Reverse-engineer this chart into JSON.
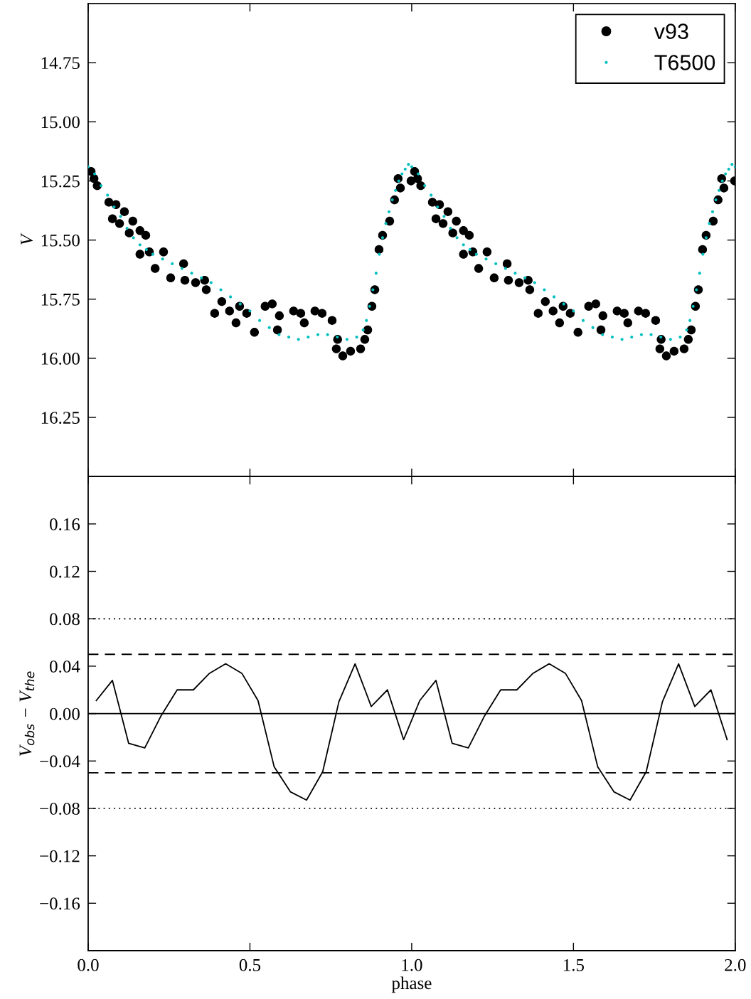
{
  "chart_data": [
    {
      "type": "scatter",
      "ylabel": "V",
      "xlim": [
        0.0,
        2.0
      ],
      "ylim": [
        16.5,
        14.5
      ],
      "xticks": [
        {
          "value": 0.0,
          "label": null
        },
        {
          "value": 0.5,
          "label": null
        },
        {
          "value": 1.0,
          "label": null
        },
        {
          "value": 1.5,
          "label": null
        },
        {
          "value": 2.0,
          "label": null
        }
      ],
      "yticks": [
        {
          "value": 14.75,
          "label": "14.75"
        },
        {
          "value": 15.0,
          "label": "15.00"
        },
        {
          "value": 15.25,
          "label": "15.25"
        },
        {
          "value": 15.5,
          "label": "15.50"
        },
        {
          "value": 15.75,
          "label": "15.75"
        },
        {
          "value": 16.0,
          "label": "16.00"
        },
        {
          "value": 16.25,
          "label": "16.25"
        }
      ],
      "tick_labels": "y",
      "legend": "top right",
      "marker": "circle",
      "grid": false,
      "series": [
        {
          "name": "v93",
          "color": "#000000",
          "x": [
            0.009,
            0.018,
            0.028,
            0.064,
            0.075,
            0.086,
            0.097,
            0.112,
            0.127,
            0.138,
            0.16,
            0.16,
            0.178,
            0.189,
            0.207,
            0.233,
            0.255,
            0.295,
            0.299,
            0.332,
            0.36,
            0.365,
            0.391,
            0.413,
            0.437,
            0.457,
            0.468,
            0.49,
            0.514,
            0.547,
            0.569,
            0.585,
            0.591,
            0.635,
            0.657,
            0.668,
            0.701,
            0.723,
            0.754,
            0.767,
            0.771,
            0.787,
            0.811,
            0.842,
            0.855,
            0.864,
            0.877,
            0.886,
            0.899,
            0.91,
            0.932,
            0.947,
            0.958,
            0.965,
            0.998,
            1.009,
            1.018,
            1.028,
            1.064,
            1.075,
            1.086,
            1.097,
            1.112,
            1.127,
            1.138,
            1.16,
            1.16,
            1.178,
            1.189,
            1.207,
            1.233,
            1.255,
            1.295,
            1.299,
            1.332,
            1.36,
            1.365,
            1.391,
            1.413,
            1.437,
            1.457,
            1.468,
            1.49,
            1.514,
            1.547,
            1.569,
            1.585,
            1.591,
            1.635,
            1.657,
            1.668,
            1.701,
            1.723,
            1.754,
            1.767,
            1.771,
            1.787,
            1.811,
            1.842,
            1.855,
            1.864,
            1.877,
            1.886,
            1.899,
            1.91,
            1.932,
            1.947,
            1.958,
            1.965,
            1.998
          ],
          "values": [
            15.21,
            15.24,
            15.27,
            15.34,
            15.41,
            15.35,
            15.43,
            15.38,
            15.47,
            15.42,
            15.46,
            15.56,
            15.48,
            15.55,
            15.62,
            15.55,
            15.66,
            15.6,
            15.67,
            15.68,
            15.67,
            15.71,
            15.81,
            15.76,
            15.8,
            15.85,
            15.78,
            15.81,
            15.89,
            15.78,
            15.77,
            15.88,
            15.82,
            15.8,
            15.81,
            15.85,
            15.8,
            15.81,
            15.84,
            15.96,
            15.92,
            15.99,
            15.97,
            15.96,
            15.92,
            15.88,
            15.78,
            15.71,
            15.54,
            15.48,
            15.42,
            15.33,
            15.24,
            15.28,
            15.25,
            15.21,
            15.24,
            15.27,
            15.34,
            15.41,
            15.35,
            15.43,
            15.38,
            15.47,
            15.42,
            15.46,
            15.56,
            15.48,
            15.55,
            15.62,
            15.55,
            15.66,
            15.6,
            15.67,
            15.68,
            15.67,
            15.71,
            15.81,
            15.76,
            15.8,
            15.85,
            15.78,
            15.81,
            15.89,
            15.78,
            15.77,
            15.88,
            15.82,
            15.8,
            15.81,
            15.85,
            15.8,
            15.81,
            15.84,
            15.96,
            15.92,
            15.99,
            15.97,
            15.96,
            15.92,
            15.88,
            15.78,
            15.71,
            15.54,
            15.48,
            15.42,
            15.33,
            15.24,
            15.28,
            15.25
          ]
        },
        {
          "name": "T6500",
          "color": "#00bfbf",
          "x": [
            0.0,
            0.02,
            0.04,
            0.06,
            0.08,
            0.1,
            0.12,
            0.14,
            0.16,
            0.18,
            0.2,
            0.23,
            0.26,
            0.29,
            0.32,
            0.35,
            0.38,
            0.41,
            0.44,
            0.47,
            0.5,
            0.53,
            0.56,
            0.59,
            0.62,
            0.65,
            0.68,
            0.71,
            0.74,
            0.77,
            0.8,
            0.83,
            0.85,
            0.86,
            0.87,
            0.88,
            0.89,
            0.9,
            0.91,
            0.92,
            0.93,
            0.94,
            0.95,
            0.96,
            0.97,
            0.98,
            0.99,
            1.0,
            1.02,
            1.04,
            1.06,
            1.08,
            1.1,
            1.12,
            1.14,
            1.16,
            1.18,
            1.2,
            1.23,
            1.26,
            1.29,
            1.32,
            1.35,
            1.38,
            1.41,
            1.44,
            1.47,
            1.5,
            1.53,
            1.56,
            1.59,
            1.62,
            1.65,
            1.68,
            1.71,
            1.74,
            1.77,
            1.8,
            1.83,
            1.85,
            1.86,
            1.87,
            1.88,
            1.89,
            1.9,
            1.91,
            1.92,
            1.93,
            1.94,
            1.95,
            1.96,
            1.97,
            1.98,
            1.99,
            2.0
          ],
          "values": [
            15.19,
            15.22,
            15.27,
            15.31,
            15.36,
            15.4,
            15.45,
            15.49,
            15.52,
            15.54,
            15.56,
            15.58,
            15.6,
            15.62,
            15.64,
            15.66,
            15.68,
            15.71,
            15.74,
            15.77,
            15.8,
            15.84,
            15.87,
            15.9,
            15.91,
            15.92,
            15.91,
            15.9,
            15.9,
            15.91,
            15.92,
            15.91,
            15.88,
            15.84,
            15.78,
            15.71,
            15.64,
            15.56,
            15.49,
            15.43,
            15.38,
            15.33,
            15.29,
            15.25,
            15.22,
            15.2,
            15.18,
            15.19,
            15.22,
            15.27,
            15.31,
            15.36,
            15.4,
            15.45,
            15.49,
            15.52,
            15.54,
            15.56,
            15.58,
            15.6,
            15.62,
            15.64,
            15.66,
            15.68,
            15.71,
            15.74,
            15.77,
            15.8,
            15.84,
            15.87,
            15.9,
            15.91,
            15.92,
            15.91,
            15.9,
            15.9,
            15.91,
            15.92,
            15.91,
            15.88,
            15.84,
            15.78,
            15.71,
            15.64,
            15.56,
            15.49,
            15.43,
            15.38,
            15.33,
            15.29,
            15.25,
            15.22,
            15.2,
            15.18,
            15.19
          ]
        }
      ]
    },
    {
      "type": "line",
      "xlabel": "phase",
      "ylabel": "V$_{obs}$ − V$_{the}$",
      "xlim": [
        0.0,
        2.0
      ],
      "ylim": [
        -0.2,
        0.2
      ],
      "xticks": [
        {
          "value": 0.0,
          "label": "0.0"
        },
        {
          "value": 0.5,
          "label": "0.5"
        },
        {
          "value": 1.0,
          "label": "1.0"
        },
        {
          "value": 1.5,
          "label": "1.5"
        },
        {
          "value": 2.0,
          "label": "2.0"
        }
      ],
      "yticks": [
        {
          "value": -0.16,
          "label": "−0.16"
        },
        {
          "value": -0.12,
          "label": "−0.12"
        },
        {
          "value": -0.08,
          "label": "−0.08"
        },
        {
          "value": -0.04,
          "label": "−0.04"
        },
        {
          "value": 0.0,
          "label": "0.00"
        },
        {
          "value": 0.04,
          "label": "0.04"
        },
        {
          "value": 0.08,
          "label": "0.08"
        },
        {
          "value": 0.12,
          "label": "0.12"
        },
        {
          "value": 0.16,
          "label": "0.16"
        }
      ],
      "grid": false,
      "line_style": "solid",
      "ref_lines": [
        {
          "axis": "y",
          "value": 0.0,
          "color": "#000000",
          "line_style": "solid"
        },
        {
          "axis": "y",
          "value": 0.05,
          "color": "#000000",
          "line_style": "dashed"
        },
        {
          "axis": "y",
          "value": -0.05,
          "color": "#000000",
          "line_style": "dashed"
        },
        {
          "axis": "y",
          "value": 0.08,
          "color": "#000000",
          "line_style": "dotted"
        },
        {
          "axis": "y",
          "value": -0.08,
          "color": "#000000",
          "line_style": "dotted"
        }
      ],
      "series": [
        {
          "color": "#000000",
          "x": [
            0.025,
            0.075,
            0.125,
            0.175,
            0.225,
            0.275,
            0.325,
            0.375,
            0.425,
            0.475,
            0.525,
            0.575,
            0.625,
            0.675,
            0.725,
            0.775,
            0.825,
            0.875,
            0.925,
            0.975,
            1.025,
            1.075,
            1.125,
            1.175,
            1.225,
            1.275,
            1.325,
            1.375,
            1.425,
            1.475,
            1.525,
            1.575,
            1.625,
            1.675,
            1.725,
            1.775,
            1.825,
            1.875,
            1.925,
            1.975
          ],
          "values": [
            0.011,
            0.028,
            -0.025,
            -0.029,
            -0.002,
            0.02,
            0.02,
            0.034,
            0.042,
            0.034,
            0.011,
            -0.045,
            -0.066,
            -0.073,
            -0.049,
            0.01,
            0.042,
            0.006,
            0.02,
            -0.022,
            0.011,
            0.028,
            -0.025,
            -0.029,
            -0.002,
            0.02,
            0.02,
            0.034,
            0.042,
            0.034,
            0.011,
            -0.045,
            -0.066,
            -0.073,
            -0.049,
            0.01,
            0.042,
            0.006,
            0.02,
            -0.022
          ]
        }
      ]
    }
  ]
}
